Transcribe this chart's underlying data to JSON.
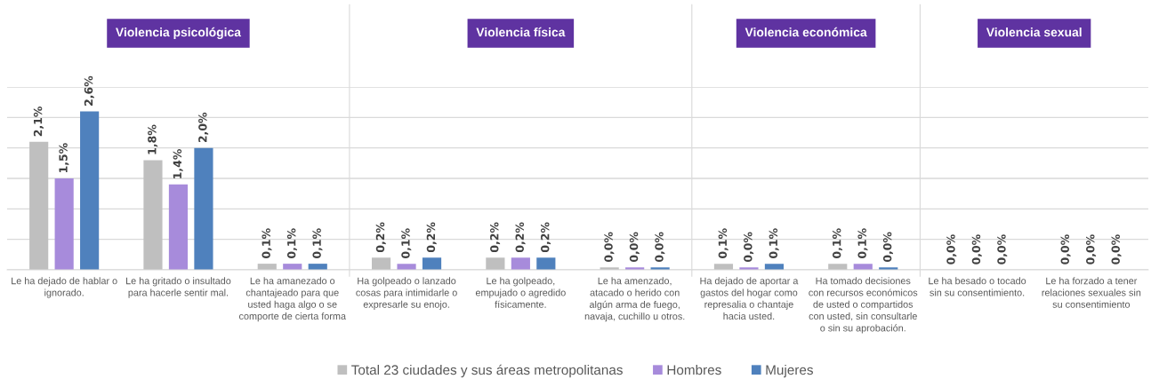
{
  "chart_data": [
    {
      "type": "bar",
      "title": "Violencia psicológica",
      "categories": [
        "Le ha dejado de hablar o ignorado.",
        "Le ha gritado o insultado para hacerle sentir mal.",
        "Le ha amanezado o chantajeado para que usted haga algo o se comporte de cierta forma"
      ],
      "series": [
        {
          "name": "Total 23 ciudades y sus áreas metropolitanas",
          "color": "#bfbfbf",
          "values": [
            2.1,
            1.8,
            0.1
          ],
          "value_labels": [
            "2,1%",
            "1,8%",
            "0,1%"
          ]
        },
        {
          "name": "Hombres",
          "color": "#a78bdb",
          "values": [
            1.5,
            1.4,
            0.1
          ],
          "value_labels": [
            "1,5%",
            "1,4%",
            "0,1%"
          ]
        },
        {
          "name": "Mujeres",
          "color": "#4f81bd",
          "values": [
            2.6,
            2.0,
            0.1
          ],
          "value_labels": [
            "2,6%",
            "2,0%",
            "0,1%"
          ]
        }
      ],
      "ylim": [
        0,
        3
      ],
      "yticks": [
        {
          "value": 0,
          "label": null
        },
        {
          "value": 0.5,
          "label": null
        },
        {
          "value": 1,
          "label": null
        },
        {
          "value": 1.5,
          "label": null
        },
        {
          "value": 2,
          "label": null
        },
        {
          "value": 2.5,
          "label": null
        },
        {
          "value": 3,
          "label": null
        }
      ],
      "grid": "y",
      "tick_labels": "x",
      "legend": "bottom"
    },
    {
      "type": "bar",
      "title": "Violencia física",
      "categories": [
        "Ha golpeado o lanzado cosas para intimidarle o expresarle su enojo.",
        "Le ha golpeado, empujado o agredido físicamente.",
        "Le ha amenzado, atacado o herido con algún arma de fuego, navaja, cuchillo u otros."
      ],
      "series": [
        {
          "color": "#bfbfbf",
          "values": [
            0.2,
            0.2,
            0.04
          ],
          "value_labels": [
            "0,2%",
            "0,2%",
            "0,0%"
          ]
        },
        {
          "color": "#a78bdb",
          "values": [
            0.1,
            0.2,
            0.04
          ],
          "value_labels": [
            "0,1%",
            "0,2%",
            "0,0%"
          ]
        },
        {
          "color": "#4f81bd",
          "values": [
            0.2,
            0.2,
            0.04
          ],
          "value_labels": [
            "0,2%",
            "0,2%",
            "0,0%"
          ]
        }
      ],
      "ylim": [
        0,
        3
      ],
      "yticks": [
        {
          "value": 0,
          "label": null
        },
        {
          "value": 0.5,
          "label": null
        },
        {
          "value": 1,
          "label": null
        },
        {
          "value": 1.5,
          "label": null
        },
        {
          "value": 2,
          "label": null
        },
        {
          "value": 2.5,
          "label": null
        },
        {
          "value": 3,
          "label": null
        }
      ],
      "grid": "y",
      "tick_labels": "x"
    },
    {
      "type": "bar",
      "title": "Violencia económica",
      "categories": [
        "Ha dejado de aportar a gastos del hogar como represalia o chantaje hacia usted.",
        "Ha tomado decisiones con recursos económicos de usted o compartidos con usted, sin consultarle o sin su aprobación."
      ],
      "series": [
        {
          "color": "#bfbfbf",
          "values": [
            0.1,
            0.1
          ],
          "value_labels": [
            "0,1%",
            "0,1%"
          ]
        },
        {
          "color": "#a78bdb",
          "values": [
            0.04,
            0.1
          ],
          "value_labels": [
            "0,0%",
            "0,1%"
          ]
        },
        {
          "color": "#4f81bd",
          "values": [
            0.1,
            0.04
          ],
          "value_labels": [
            "0,1%",
            "0,0%"
          ]
        }
      ],
      "ylim": [
        0,
        3
      ],
      "yticks": [
        {
          "value": 0,
          "label": null
        },
        {
          "value": 0.5,
          "label": null
        },
        {
          "value": 1,
          "label": null
        },
        {
          "value": 1.5,
          "label": null
        },
        {
          "value": 2,
          "label": null
        },
        {
          "value": 2.5,
          "label": null
        },
        {
          "value": 3,
          "label": null
        }
      ],
      "grid": "y",
      "tick_labels": "x"
    },
    {
      "type": "other",
      "title": "Violencia sexual",
      "categories": [
        "Le ha besado o tocado sin su consentimiento.",
        "Le ha forzado a tener relaciones sexuales sin su consentimiento"
      ],
      "series": [
        {
          "values": [
            0,
            0
          ],
          "value_labels": [
            "0,0%",
            "0,0%"
          ]
        },
        {
          "values": [
            0,
            0
          ],
          "value_labels": [
            "0,0%",
            "0,0%"
          ]
        },
        {
          "values": [
            0,
            0
          ],
          "value_labels": [
            "0,0%",
            "0,0%"
          ]
        }
      ]
    }
  ]
}
